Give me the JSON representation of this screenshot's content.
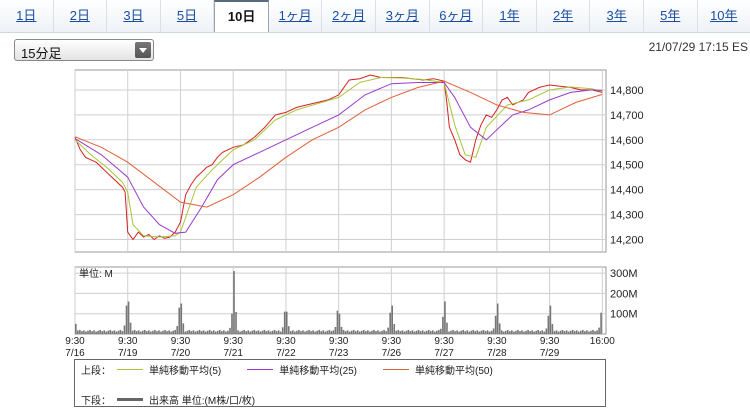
{
  "tabs": [
    {
      "label": "1日",
      "active": false
    },
    {
      "label": "2日",
      "active": false
    },
    {
      "label": "3日",
      "active": false
    },
    {
      "label": "5日",
      "active": false
    },
    {
      "label": "10日",
      "active": true
    },
    {
      "label": "1ヶ月",
      "active": false
    },
    {
      "label": "2ヶ月",
      "active": false
    },
    {
      "label": "3ヶ月",
      "active": false
    },
    {
      "label": "6ヶ月",
      "active": false
    },
    {
      "label": "1年",
      "active": false
    },
    {
      "label": "2年",
      "active": false
    },
    {
      "label": "3年",
      "active": false
    },
    {
      "label": "5年",
      "active": false
    },
    {
      "label": "10年",
      "active": false
    }
  ],
  "interval_select": {
    "value": "15分足"
  },
  "timestamp": "21/07/29 17:15 ES",
  "chart_data": [
    {
      "type": "line",
      "panel": "price",
      "ylim": [
        14150,
        14880
      ],
      "yticks": [
        14200,
        14300,
        14400,
        14500,
        14600,
        14700,
        14800
      ],
      "ytick_labels": [
        "14,200",
        "14,300",
        "14,400",
        "14,500",
        "14,600",
        "14,700",
        "14,800"
      ],
      "x_range": [
        0,
        10.07
      ],
      "series": [
        {
          "name": "price",
          "color": "#d42020",
          "width": 1,
          "x": [
            0,
            0.1,
            0.2,
            0.3,
            0.4,
            0.5,
            0.6,
            0.7,
            0.8,
            0.9,
            0.95,
            1,
            1.1,
            1.2,
            1.3,
            1.4,
            1.5,
            1.6,
            1.7,
            1.8,
            1.9,
            2,
            2.1,
            2.2,
            2.3,
            2.4,
            2.5,
            2.6,
            2.7,
            2.8,
            2.9,
            3,
            3.2,
            3.4,
            3.6,
            3.8,
            4,
            4.2,
            4.4,
            4.6,
            4.8,
            5,
            5.2,
            5.4,
            5.6,
            5.8,
            6,
            6.2,
            6.4,
            6.6,
            6.8,
            7,
            7.05,
            7.1,
            7.2,
            7.3,
            7.4,
            7.5,
            7.6,
            7.7,
            7.8,
            7.9,
            8,
            8.1,
            8.2,
            8.3,
            8.4,
            8.5,
            8.6,
            8.7,
            8.8,
            8.9,
            9,
            9.2,
            9.4,
            9.6,
            9.8,
            10
          ],
          "y": [
            14610,
            14560,
            14530,
            14520,
            14510,
            14490,
            14470,
            14450,
            14430,
            14410,
            14390,
            14230,
            14200,
            14230,
            14210,
            14220,
            14200,
            14215,
            14205,
            14210,
            14230,
            14270,
            14380,
            14420,
            14450,
            14470,
            14490,
            14500,
            14530,
            14550,
            14560,
            14570,
            14580,
            14610,
            14650,
            14700,
            14710,
            14730,
            14740,
            14750,
            14760,
            14780,
            14840,
            14845,
            14860,
            14850,
            14850,
            14850,
            14845,
            14840,
            14845,
            14835,
            14750,
            14650,
            14600,
            14540,
            14520,
            14510,
            14600,
            14660,
            14700,
            14690,
            14720,
            14760,
            14770,
            14740,
            14750,
            14760,
            14790,
            14800,
            14810,
            14815,
            14820,
            14815,
            14810,
            14800,
            14800,
            14790
          ]
        },
        {
          "name": "単純移動平均(5)",
          "color": "#a8c53a",
          "width": 1,
          "x": [
            0,
            0.3,
            0.6,
            0.9,
            1,
            1.1,
            1.3,
            1.6,
            1.9,
            2,
            2.3,
            2.6,
            3,
            3.4,
            3.8,
            4.2,
            4.6,
            5,
            5.4,
            5.8,
            6.2,
            6.6,
            7,
            7.2,
            7.4,
            7.6,
            7.8,
            8.2,
            8.6,
            9,
            9.4,
            9.8,
            10
          ],
          "y": [
            14600,
            14540,
            14490,
            14430,
            14390,
            14260,
            14215,
            14210,
            14215,
            14230,
            14410,
            14480,
            14560,
            14600,
            14680,
            14720,
            14745,
            14770,
            14830,
            14850,
            14848,
            14842,
            14830,
            14660,
            14540,
            14530,
            14650,
            14740,
            14760,
            14800,
            14812,
            14805,
            14793
          ]
        },
        {
          "name": "単純移動平均(25)",
          "color": "#9a3cc8",
          "width": 1,
          "x": [
            0,
            0.5,
            1,
            1.3,
            1.6,
            1.9,
            2.1,
            2.4,
            2.7,
            3,
            3.5,
            4,
            4.5,
            5,
            5.5,
            6,
            6.5,
            7,
            7.2,
            7.5,
            7.8,
            8,
            8.3,
            8.6,
            9,
            9.4,
            9.8,
            10
          ],
          "y": [
            14605,
            14540,
            14450,
            14330,
            14260,
            14225,
            14230,
            14330,
            14440,
            14500,
            14550,
            14600,
            14650,
            14700,
            14780,
            14825,
            14830,
            14830,
            14770,
            14650,
            14600,
            14640,
            14700,
            14720,
            14760,
            14790,
            14800,
            14798
          ]
        },
        {
          "name": "単純移動平均(50)",
          "color": "#e0603a",
          "width": 1,
          "x": [
            0,
            0.5,
            1,
            1.5,
            2,
            2.5,
            3,
            3.5,
            4,
            4.5,
            5,
            5.5,
            6,
            6.5,
            7,
            7.5,
            8,
            8.5,
            9,
            9.5,
            10
          ],
          "y": [
            14612,
            14570,
            14510,
            14430,
            14350,
            14330,
            14380,
            14450,
            14530,
            14600,
            14650,
            14720,
            14770,
            14810,
            14835,
            14790,
            14740,
            14710,
            14700,
            14750,
            14782
          ]
        }
      ]
    },
    {
      "type": "bar",
      "panel": "volume",
      "series_name": "出来高",
      "unit_label": "単位: M",
      "ylim": [
        0,
        330
      ],
      "yticks": [
        100,
        200,
        300
      ],
      "ytick_labels": [
        "100M",
        "200M",
        "300M"
      ],
      "bar_color": "#777777",
      "day_starts": [
        0,
        1,
        2,
        3,
        4,
        5,
        6,
        7,
        8,
        9
      ],
      "open_spikes": [
        50,
        160,
        150,
        310,
        110,
        100,
        140,
        160,
        150,
        140
      ],
      "close_spikes": [
        140,
        130,
        100,
        110,
        115,
        105,
        85,
        90,
        90,
        105
      ],
      "base_level": 12
    }
  ],
  "x_axis": {
    "ticks": [
      {
        "x": 0,
        "time": "9:30",
        "date": "7/16"
      },
      {
        "x": 1,
        "time": "9:30",
        "date": "7/19"
      },
      {
        "x": 2,
        "time": "9:30",
        "date": "7/20"
      },
      {
        "x": 3,
        "time": "9:30",
        "date": "7/21"
      },
      {
        "x": 4,
        "time": "9:30",
        "date": "7/22"
      },
      {
        "x": 5,
        "time": "9:30",
        "date": "7/23"
      },
      {
        "x": 6,
        "time": "9:30",
        "date": "7/26"
      },
      {
        "x": 7,
        "time": "9:30",
        "date": "7/27"
      },
      {
        "x": 8,
        "time": "9:30",
        "date": "7/28"
      },
      {
        "x": 9,
        "time": "9:30",
        "date": "7/29"
      },
      {
        "x": 10,
        "time": "16:00",
        "date": ""
      }
    ]
  },
  "legend": {
    "upper_label": "上段：",
    "lower_label": "下段：",
    "items": [
      {
        "label": "単純移動平均(5)",
        "color": "#a8c53a"
      },
      {
        "label": "単純移動平均(25)",
        "color": "#9a3cc8"
      },
      {
        "label": "単純移動平均(50)",
        "color": "#e0603a"
      }
    ],
    "volume_label": "出来高 単位:(M株/口/枚)",
    "volume_color": "#666666"
  }
}
